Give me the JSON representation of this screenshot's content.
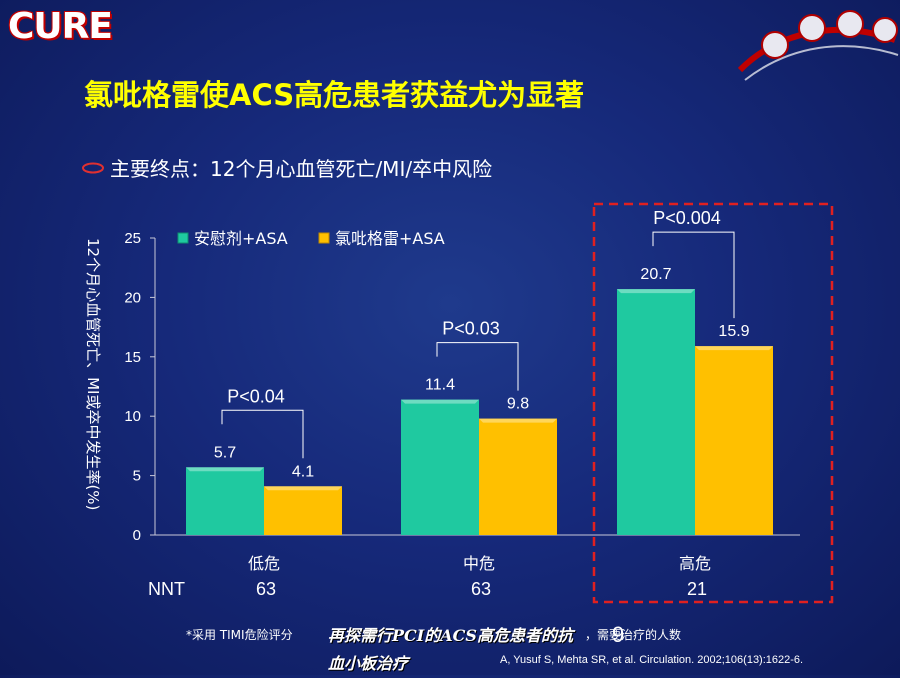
{
  "logo": "CURE",
  "title": "氯吡格雷使ACS高危患者获益尤为显著",
  "subtitle": "主要终点：12个月心血管死亡/MI/卒中风险",
  "footnote_left": "*采用 TIMI危险评分",
  "footnote_mid": "，需要治疗的人数",
  "footnote_ref": "A, Yusuf S, Mehta SR, et al. Circulation. 2002;106(13):1622-6.",
  "overlay_text": "再探需行PCI的ACS高危患者的抗血小板治疗",
  "page_number": "9",
  "colors": {
    "placebo": "#1fc9a0",
    "clopidogrel": "#ffc000",
    "title": "#ffff00",
    "highlight_box": "#e02020"
  },
  "chart_data": {
    "type": "bar",
    "title": "",
    "xlabel": "",
    "ylabel": "12个月心血管死亡、MI或卒中发生率(%)",
    "ylim": [
      0,
      25
    ],
    "yticks": [
      0,
      5,
      10,
      15,
      20,
      25
    ],
    "categories": [
      "低危",
      "中危",
      "高危"
    ],
    "series": [
      {
        "name": "安慰剂+ASA",
        "values": [
          5.7,
          11.4,
          20.7
        ]
      },
      {
        "name": "氯吡格雷+ASA",
        "values": [
          4.1,
          9.8,
          15.9
        ]
      }
    ],
    "p_values": [
      "P<0.04",
      "P<0.03",
      "P<0.004"
    ],
    "nnt_label": "NNT",
    "nnt": [
      "63",
      "63",
      "21"
    ],
    "legend_position": "top-left",
    "grid": false,
    "highlighted_category": "高危"
  }
}
